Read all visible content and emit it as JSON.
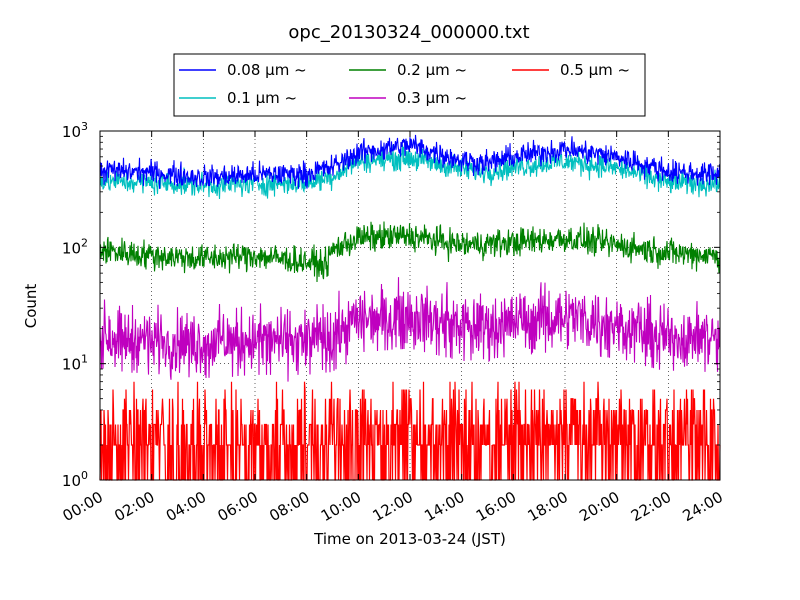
{
  "chart_data": {
    "type": "line",
    "title": "opc_20130324_000000.txt",
    "xlabel": "Time on 2013-03-24 (JST)",
    "ylabel": "Count",
    "y_scale": "log",
    "ylim": [
      1,
      1000
    ],
    "xlim": [
      "00:00",
      "24:00"
    ],
    "x_ticks": [
      "00:00",
      "02:00",
      "04:00",
      "06:00",
      "08:00",
      "10:00",
      "12:00",
      "14:00",
      "16:00",
      "18:00",
      "20:00",
      "22:00",
      "24:00"
    ],
    "y_ticks": [
      {
        "value": 1,
        "label": "10",
        "exp": "0"
      },
      {
        "value": 10,
        "label": "10",
        "exp": "1"
      },
      {
        "value": 100,
        "label": "10",
        "exp": "2"
      },
      {
        "value": 1000,
        "label": "10",
        "exp": "3"
      }
    ],
    "grid": true,
    "legend_position": "top-center",
    "series": [
      {
        "name": "0.08 μm ~",
        "color": "#0000ff",
        "x": [
          "00:00",
          "02:00",
          "04:00",
          "06:00",
          "08:00",
          "09:00",
          "10:00",
          "12:00",
          "14:00",
          "15:00",
          "16:00",
          "18:00",
          "20:00",
          "22:00",
          "24:00"
        ],
        "values": [
          460,
          440,
          400,
          420,
          430,
          490,
          650,
          760,
          560,
          530,
          600,
          700,
          600,
          450,
          420
        ]
      },
      {
        "name": "0.1 μm ~",
        "color": "#00bfbf",
        "x": [
          "00:00",
          "02:00",
          "04:00",
          "06:00",
          "08:00",
          "09:00",
          "10:00",
          "12:00",
          "14:00",
          "15:00",
          "16:00",
          "18:00",
          "20:00",
          "22:00",
          "24:00"
        ],
        "values": [
          370,
          360,
          340,
          350,
          360,
          410,
          560,
          590,
          470,
          450,
          490,
          550,
          480,
          360,
          350
        ]
      },
      {
        "name": "0.2 μm ~",
        "color": "#008000",
        "x": [
          "00:00",
          "02:00",
          "04:00",
          "06:00",
          "08:00",
          "08:45",
          "09:00",
          "10:00",
          "12:00",
          "14:00",
          "16:00",
          "18:00",
          "20:00",
          "22:00",
          "24:00"
        ],
        "values": [
          95,
          85,
          80,
          85,
          75,
          70,
          95,
          120,
          125,
          105,
          110,
          120,
          105,
          90,
          85
        ]
      },
      {
        "name": "0.3 μm ~",
        "color": "#bf00bf",
        "x": [
          "00:00",
          "02:00",
          "04:00",
          "06:00",
          "08:00",
          "09:00",
          "10:00",
          "12:00",
          "14:00",
          "16:00",
          "18:00",
          "20:00",
          "22:00",
          "24:00"
        ],
        "values": [
          18,
          16,
          15,
          16,
          16,
          17,
          25,
          27,
          21,
          23,
          26,
          22,
          17,
          17
        ]
      },
      {
        "name": "0.5 μm ~",
        "color": "#ff0000",
        "x": [
          "00:00",
          "04:00",
          "08:00",
          "09:00",
          "10:00",
          "14:00",
          "18:00",
          "22:00",
          "24:00"
        ],
        "values": [
          1.6,
          1.5,
          1.5,
          1.5,
          2.0,
          2.0,
          2.2,
          1.8,
          1.8
        ]
      }
    ]
  }
}
